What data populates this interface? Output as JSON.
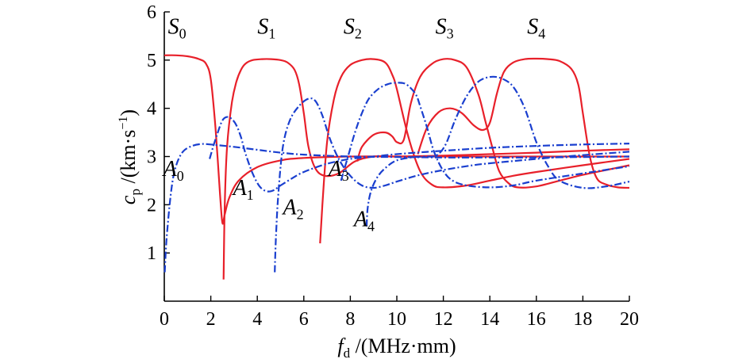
{
  "chart_data": {
    "type": "line",
    "title": "",
    "xlabel": {
      "symbol": "f",
      "sub": "d",
      "unit": " /(MHz·mm)"
    },
    "ylabel": {
      "symbol": "c",
      "sub": "p",
      "unit": " /(km·s",
      "sup": "−1",
      "close": ")"
    },
    "xlim": [
      0,
      20
    ],
    "ylim": [
      0,
      6
    ],
    "xticks": [
      0,
      2,
      4,
      6,
      8,
      10,
      12,
      14,
      16,
      18,
      20
    ],
    "yticks": [
      1,
      2,
      3,
      4,
      5,
      6
    ],
    "grid": false,
    "colors": {
      "symmetric": "#e8202a",
      "antisymmetric": "#1a3fcf"
    },
    "series": [
      {
        "name": "S0",
        "group": "symmetric",
        "x": [
          0,
          0.5,
          1,
          1.5,
          1.8,
          2,
          2.2,
          2.4,
          2.5,
          2.6,
          2.8,
          3.2,
          4,
          5,
          6,
          8,
          10,
          12,
          14,
          16,
          18,
          20
        ],
        "y": [
          5.1,
          5.1,
          5.08,
          5.02,
          4.92,
          4.6,
          3.6,
          2.2,
          1.62,
          1.8,
          2.15,
          2.5,
          2.78,
          2.92,
          2.97,
          3.0,
          3.0,
          3.0,
          3.0,
          3.0,
          3.0,
          3.0
        ]
      },
      {
        "name": "S1",
        "group": "symmetric",
        "x": [
          2.55,
          2.6,
          2.7,
          2.9,
          3.1,
          3.3,
          3.5,
          3.8,
          4.2,
          4.6,
          5.0,
          5.3,
          5.6,
          5.8,
          6.0,
          6.2,
          6.5,
          6.9,
          7.5,
          8.2,
          9.0,
          10,
          12,
          14,
          16,
          18,
          20
        ],
        "y": [
          0.45,
          2.0,
          3.2,
          4.1,
          4.55,
          4.8,
          4.93,
          5.0,
          5.02,
          5.02,
          5.0,
          4.95,
          4.8,
          4.5,
          3.9,
          3.2,
          2.75,
          2.6,
          2.65,
          2.9,
          3.0,
          3.0,
          3.02,
          3.05,
          3.08,
          3.12,
          3.15
        ]
      },
      {
        "name": "S2",
        "group": "symmetric",
        "x": [
          6.7,
          6.8,
          7.0,
          7.3,
          7.6,
          8.0,
          8.5,
          9.0,
          9.5,
          9.8,
          10.0,
          10.5,
          11.0,
          11.5,
          12.0,
          13,
          14,
          15,
          16,
          18,
          20
        ],
        "y": [
          1.2,
          2.0,
          3.3,
          4.2,
          4.65,
          4.9,
          5.0,
          5.02,
          4.95,
          4.7,
          4.4,
          3.4,
          2.7,
          2.42,
          2.36,
          2.4,
          2.5,
          2.6,
          2.68,
          2.82,
          2.95
        ]
      },
      {
        "name": "S3",
        "group": "symmetric",
        "x": [
          8.3,
          8.5,
          9.0,
          9.5,
          9.8,
          10.0,
          10.3,
          10.6,
          11.0,
          11.5,
          12.0,
          12.5,
          13.0,
          13.5,
          13.8,
          14.1,
          14.4,
          14.8,
          15.2,
          16,
          17,
          18,
          19,
          20
        ],
        "y": [
          2.9,
          3.2,
          3.45,
          3.5,
          3.42,
          3.3,
          3.35,
          4.1,
          4.65,
          4.92,
          5.02,
          5.0,
          4.85,
          4.3,
          3.75,
          3.2,
          2.7,
          2.45,
          2.36,
          2.38,
          2.5,
          2.62,
          2.72,
          2.82
        ]
      },
      {
        "name": "S4",
        "group": "symmetric",
        "x": [
          10.9,
          11.3,
          11.8,
          12.3,
          12.8,
          13.3,
          13.7,
          14.0,
          14.3,
          14.6,
          15.0,
          15.5,
          16.0,
          16.5,
          17.0,
          17.5,
          17.8,
          18.0,
          18.3,
          18.6,
          19.0,
          19.5,
          20.0
        ],
        "y": [
          3.05,
          3.6,
          3.92,
          4.0,
          3.9,
          3.65,
          3.55,
          3.7,
          4.3,
          4.75,
          4.95,
          5.02,
          5.03,
          5.02,
          4.98,
          4.82,
          4.5,
          3.9,
          3.0,
          2.55,
          2.42,
          2.36,
          2.35
        ]
      },
      {
        "name": "A0",
        "group": "antisymmetric",
        "x": [
          0.02,
          0.1,
          0.3,
          0.5,
          0.8,
          1.2,
          1.6,
          2.0,
          3,
          4,
          5,
          6,
          8,
          10,
          12,
          14,
          16,
          18,
          20
        ],
        "y": [
          0.6,
          1.3,
          2.3,
          2.8,
          3.1,
          3.22,
          3.26,
          3.25,
          3.2,
          3.14,
          3.08,
          3.04,
          3.0,
          2.99,
          2.98,
          2.98,
          2.98,
          2.99,
          3.0
        ]
      },
      {
        "name": "A1",
        "group": "antisymmetric",
        "x": [
          1.95,
          2.1,
          2.3,
          2.5,
          2.7,
          2.9,
          3.1,
          3.3,
          3.5,
          3.8,
          4.1,
          4.4,
          4.7,
          5.0,
          5.5,
          6.0,
          7,
          8,
          9,
          10,
          12,
          14,
          16,
          18,
          20
        ],
        "y": [
          2.95,
          3.2,
          3.5,
          3.75,
          3.82,
          3.78,
          3.65,
          3.4,
          3.05,
          2.65,
          2.38,
          2.28,
          2.3,
          2.4,
          2.55,
          2.68,
          2.85,
          2.95,
          3.0,
          3.05,
          3.12,
          3.18,
          3.22,
          3.25,
          3.27
        ]
      },
      {
        "name": "A2",
        "group": "antisymmetric",
        "x": [
          4.75,
          4.8,
          4.9,
          5.1,
          5.4,
          5.8,
          6.2,
          6.5,
          6.8,
          7.1,
          7.5,
          8.0,
          8.5,
          9.0,
          9.5,
          10,
          11,
          12,
          13,
          14,
          16,
          18,
          20
        ],
        "y": [
          0.6,
          1.3,
          2.2,
          3.2,
          3.75,
          4.05,
          4.2,
          4.15,
          3.85,
          3.4,
          2.95,
          2.6,
          2.4,
          2.35,
          2.4,
          2.48,
          2.62,
          2.72,
          2.8,
          2.86,
          2.95,
          3.03,
          3.1
        ]
      },
      {
        "name": "A3",
        "group": "antisymmetric",
        "x": [
          7.6,
          7.9,
          8.2,
          8.5,
          8.8,
          9.2,
          9.6,
          10.0,
          10.4,
          10.8,
          11.0,
          11.3,
          11.6,
          12.0,
          12.4,
          13,
          14,
          15,
          16,
          18,
          20
        ],
        "y": [
          2.5,
          3.0,
          3.5,
          3.9,
          4.2,
          4.4,
          4.5,
          4.53,
          4.5,
          4.3,
          4.05,
          3.6,
          3.1,
          2.7,
          2.5,
          2.4,
          2.36,
          2.4,
          2.5,
          2.65,
          2.8
        ]
      },
      {
        "name": "A4",
        "group": "antisymmetric",
        "x": [
          8.7,
          8.75,
          8.9,
          9.2,
          9.6,
          10.0,
          10.6,
          11.2,
          11.7,
          12.1,
          12.5,
          13.0,
          13.5,
          14.0,
          14.5,
          15.0,
          15.5,
          16.0,
          16.5,
          17.0,
          18.0,
          19.0,
          20.0
        ],
        "y": [
          1.55,
          1.95,
          2.3,
          2.6,
          2.8,
          2.92,
          2.98,
          3.0,
          3.02,
          3.25,
          3.75,
          4.25,
          4.55,
          4.65,
          4.62,
          4.45,
          4.0,
          3.3,
          2.8,
          2.5,
          2.35,
          2.38,
          2.48
        ]
      }
    ],
    "annotations": [
      {
        "series": "S0",
        "letter": "S",
        "sub": "0",
        "x": 0.55,
        "y": 5.55
      },
      {
        "series": "S1",
        "letter": "S",
        "sub": "1",
        "x": 4.4,
        "y": 5.55
      },
      {
        "series": "S2",
        "letter": "S",
        "sub": "2",
        "x": 8.1,
        "y": 5.55
      },
      {
        "series": "S3",
        "letter": "S",
        "sub": "3",
        "x": 12.05,
        "y": 5.55
      },
      {
        "series": "S4",
        "letter": "S",
        "sub": "4",
        "x": 16.0,
        "y": 5.55
      },
      {
        "series": "A0",
        "letter": "A",
        "sub": "0",
        "x": 0.4,
        "y": 2.6
      },
      {
        "series": "A1",
        "letter": "A",
        "sub": "1",
        "x": 3.4,
        "y": 2.2
      },
      {
        "series": "A2",
        "letter": "A",
        "sub": "2",
        "x": 5.55,
        "y": 1.8
      },
      {
        "series": "A3",
        "letter": "A",
        "sub": "3",
        "x": 7.5,
        "y": 2.6
      },
      {
        "series": "A4",
        "letter": "A",
        "sub": "4",
        "x": 8.6,
        "y": 1.55
      }
    ]
  }
}
